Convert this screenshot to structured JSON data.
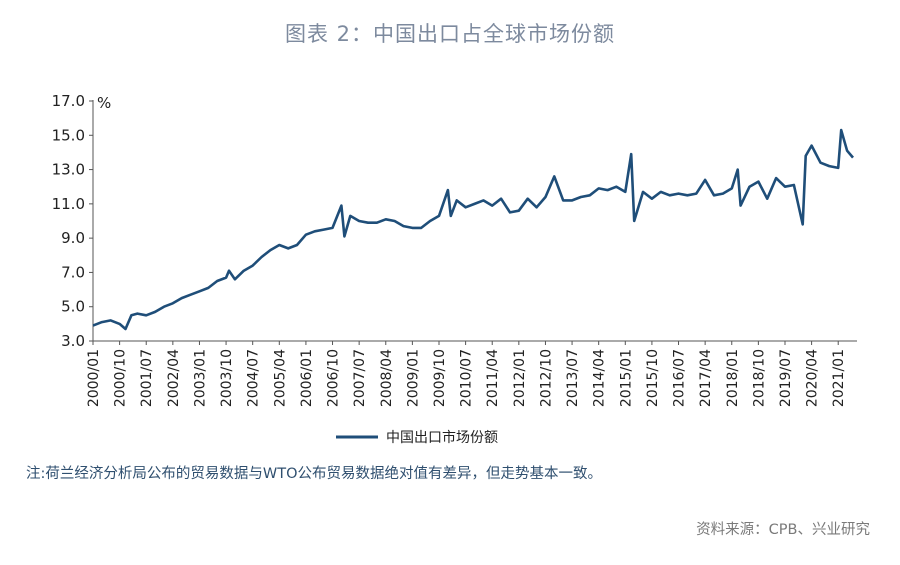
{
  "title": "图表 2：中国出口占全球市场份额",
  "note": "注:荷兰经济分析局公布的贸易数据与WTO公布贸易数据绝对值有差异，但走势基本一致。",
  "source": "资料来源：CPB、兴业研究",
  "colors": {
    "line": "#1f4e79",
    "title": "#7d8a9e",
    "note": "#2f4f6f"
  },
  "chart_data": {
    "type": "line",
    "title": "图表 2：中国出口占全球市场份额",
    "ylabel": "%",
    "ylim": [
      3.0,
      17.0
    ],
    "yticks": [
      "3.0",
      "5.0",
      "7.0",
      "9.0",
      "11.0",
      "13.0",
      "15.0",
      "17.0"
    ],
    "xticks": [
      "2000/01",
      "2000/10",
      "2001/07",
      "2002/04",
      "2003/01",
      "2003/10",
      "2004/07",
      "2005/04",
      "2006/01",
      "2006/10",
      "2007/07",
      "2008/04",
      "2009/01",
      "2009/10",
      "2010/07",
      "2011/04",
      "2012/01",
      "2012/10",
      "2013/07",
      "2014/04",
      "2015/01",
      "2015/10",
      "2016/07",
      "2017/04",
      "2018/01",
      "2018/10",
      "2019/07",
      "2020/04",
      "2021/01"
    ],
    "legend_position": "bottom-center",
    "grid": false,
    "series": [
      {
        "name": "中国出口市场份额",
        "x": [
          "2000/01",
          "2000/04",
          "2000/07",
          "2000/10",
          "2000/12",
          "2001/02",
          "2001/04",
          "2001/07",
          "2001/10",
          "2002/01",
          "2002/04",
          "2002/07",
          "2002/10",
          "2003/01",
          "2003/04",
          "2003/07",
          "2003/10",
          "2003/11",
          "2004/01",
          "2004/04",
          "2004/07",
          "2004/10",
          "2005/01",
          "2005/04",
          "2005/07",
          "2005/10",
          "2006/01",
          "2006/04",
          "2006/07",
          "2006/10",
          "2007/01",
          "2007/02",
          "2007/04",
          "2007/07",
          "2007/10",
          "2008/01",
          "2008/04",
          "2008/07",
          "2008/10",
          "2009/01",
          "2009/04",
          "2009/07",
          "2009/10",
          "2010/01",
          "2010/02",
          "2010/04",
          "2010/07",
          "2010/10",
          "2011/01",
          "2011/04",
          "2011/07",
          "2011/10",
          "2012/01",
          "2012/04",
          "2012/07",
          "2012/10",
          "2013/01",
          "2013/04",
          "2013/07",
          "2013/10",
          "2014/01",
          "2014/04",
          "2014/07",
          "2014/10",
          "2015/01",
          "2015/03",
          "2015/04",
          "2015/07",
          "2015/10",
          "2016/01",
          "2016/04",
          "2016/07",
          "2016/10",
          "2017/01",
          "2017/04",
          "2017/07",
          "2017/10",
          "2018/01",
          "2018/03",
          "2018/04",
          "2018/07",
          "2018/10",
          "2019/01",
          "2019/04",
          "2019/07",
          "2019/10",
          "2020/01",
          "2020/02",
          "2020/04",
          "2020/07",
          "2020/10",
          "2021/01",
          "2021/02",
          "2021/04",
          "2021/06"
        ],
        "values": [
          3.9,
          4.1,
          4.2,
          4.0,
          3.7,
          4.5,
          4.6,
          4.5,
          4.7,
          5.0,
          5.2,
          5.5,
          5.7,
          5.9,
          6.1,
          6.5,
          6.7,
          7.1,
          6.6,
          7.1,
          7.4,
          7.9,
          8.3,
          8.6,
          8.4,
          8.6,
          9.2,
          9.4,
          9.5,
          9.6,
          10.9,
          9.1,
          10.3,
          10.0,
          9.9,
          9.9,
          10.1,
          10.0,
          9.7,
          9.6,
          9.6,
          10.0,
          10.3,
          11.8,
          10.3,
          11.2,
          10.8,
          11.0,
          11.2,
          10.9,
          11.3,
          10.5,
          10.6,
          11.3,
          10.8,
          11.4,
          12.6,
          11.2,
          11.2,
          11.4,
          11.5,
          11.9,
          11.8,
          12.0,
          11.7,
          13.9,
          10.0,
          11.7,
          11.3,
          11.7,
          11.5,
          11.6,
          11.5,
          11.6,
          12.4,
          11.5,
          11.6,
          11.9,
          13.0,
          10.9,
          12.0,
          12.3,
          11.3,
          12.5,
          12.0,
          12.1,
          9.8,
          13.8,
          14.4,
          13.4,
          13.2,
          13.1,
          15.3,
          14.1,
          13.7
        ]
      }
    ]
  }
}
